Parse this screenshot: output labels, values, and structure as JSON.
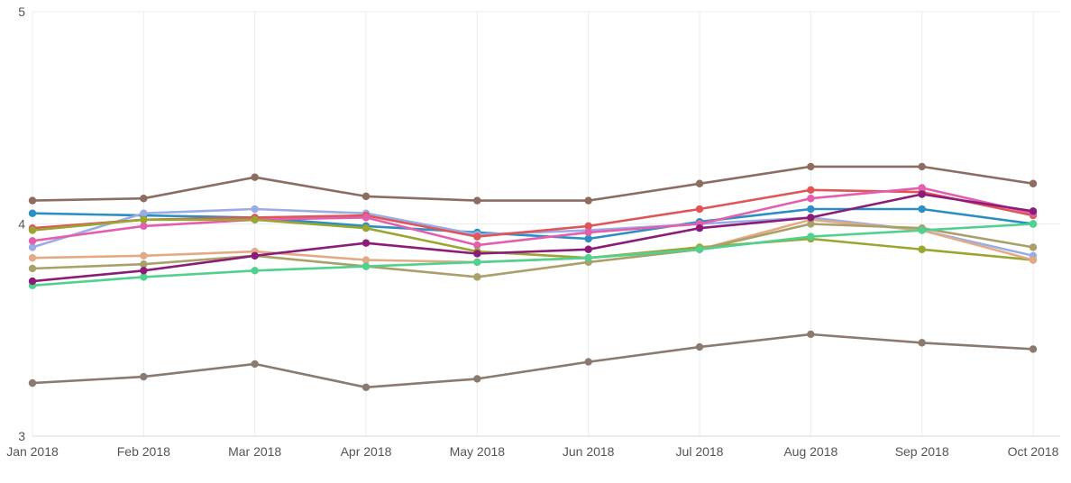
{
  "chart_data": {
    "type": "line",
    "title": "",
    "xlabel": "",
    "ylabel": "",
    "x": [
      "Jan 2018",
      "Feb 2018",
      "Mar 2018",
      "Apr 2018",
      "May 2018",
      "Jun 2018",
      "Jul 2018",
      "Aug 2018",
      "Sep 2018",
      "Oct 2018"
    ],
    "ylim": [
      3,
      5
    ],
    "yticks": [
      "3",
      "4",
      "5"
    ],
    "grid": true,
    "legend": "none",
    "series": [
      {
        "color": "#8c6d62",
        "values": [
          4.11,
          4.12,
          4.22,
          4.13,
          4.11,
          4.11,
          4.19,
          4.27,
          4.27,
          4.19
        ]
      },
      {
        "color": "#2b8fc4",
        "values": [
          4.05,
          4.04,
          4.03,
          3.99,
          3.96,
          3.93,
          4.01,
          4.07,
          4.07,
          4.0
        ]
      },
      {
        "color": "#9aace6",
        "values": [
          3.89,
          4.05,
          4.07,
          4.05,
          3.95,
          3.97,
          4.0,
          4.03,
          3.97,
          3.85
        ]
      },
      {
        "color": "#e05557",
        "values": [
          3.98,
          4.02,
          4.03,
          4.04,
          3.94,
          3.99,
          4.07,
          4.16,
          4.15,
          4.04
        ]
      },
      {
        "color": "#e35fae",
        "values": [
          3.92,
          3.99,
          4.02,
          4.03,
          3.9,
          3.96,
          4.0,
          4.12,
          4.17,
          4.05
        ]
      },
      {
        "color": "#9aa630",
        "values": [
          3.97,
          4.02,
          4.02,
          3.98,
          3.87,
          3.84,
          3.89,
          3.93,
          3.88,
          3.83
        ]
      },
      {
        "color": "#e2aa85",
        "values": [
          3.84,
          3.85,
          3.87,
          3.83,
          3.82,
          3.84,
          3.88,
          4.02,
          3.97,
          3.83
        ]
      },
      {
        "color": "#a9a06a",
        "values": [
          3.79,
          3.81,
          3.85,
          3.8,
          3.75,
          3.82,
          3.88,
          4.0,
          3.98,
          3.89
        ]
      },
      {
        "color": "#51d18f",
        "values": [
          3.71,
          3.75,
          3.78,
          3.8,
          3.82,
          3.84,
          3.88,
          3.94,
          3.97,
          4.0
        ]
      },
      {
        "color": "#8b1d78",
        "values": [
          3.73,
          3.78,
          3.85,
          3.91,
          3.86,
          3.88,
          3.98,
          4.03,
          4.14,
          4.06
        ]
      },
      {
        "color": "#8a7a70",
        "values": [
          3.25,
          3.28,
          3.34,
          3.23,
          3.27,
          3.35,
          3.42,
          3.48,
          3.44,
          3.41
        ]
      }
    ]
  }
}
